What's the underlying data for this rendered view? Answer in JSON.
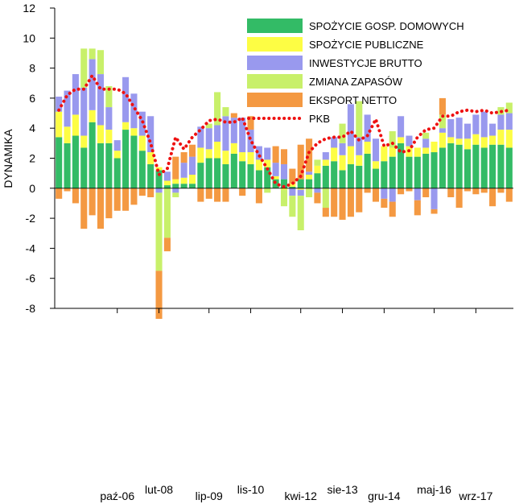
{
  "chart_data": {
    "type": "bar",
    "subtype": "stacked-bar-with-line",
    "title": "",
    "xlabel": "",
    "ylabel": "DYNAMIKA",
    "ylim": [
      -8,
      12
    ],
    "yticks": [
      -8,
      -6,
      -4,
      -2,
      0,
      2,
      4,
      6,
      8,
      10,
      12
    ],
    "grid": false,
    "legend_position": "top-right",
    "start_quarter": "2005Q1",
    "x_tick_labels": [
      {
        "label": "paź-06",
        "quarter": "2006Q4"
      },
      {
        "label": "lut-08",
        "quarter": "2008Q1"
      },
      {
        "label": "lip-09",
        "quarter": "2009Q3"
      },
      {
        "label": "lis-10",
        "quarter": "2010Q4"
      },
      {
        "label": "kwi-12",
        "quarter": "2012Q2"
      },
      {
        "label": "sie-13",
        "quarter": "2013Q3"
      },
      {
        "label": "gru-14",
        "quarter": "2014Q4"
      },
      {
        "label": "maj-16",
        "quarter": "2016Q2"
      },
      {
        "label": "wrz-17",
        "quarter": "2017Q3"
      }
    ],
    "series": [
      {
        "name": "SPOŻYCIE GOSP. DOMOWYCH",
        "color": "#33bb66",
        "values": [
          3.4,
          3.0,
          3.5,
          2.7,
          4.4,
          3.0,
          3.0,
          2.0,
          3.9,
          3.5,
          2.5,
          1.6,
          1.2,
          0.2,
          0.3,
          0.3,
          0.3,
          1.7,
          2.0,
          2.0,
          1.6,
          2.3,
          1.8,
          1.6,
          1.2,
          1.4,
          0.6,
          0.6,
          0.1,
          0.6,
          0.6,
          1.0,
          1.5,
          1.8,
          1.2,
          1.6,
          1.5,
          2.3,
          1.3,
          1.8,
          2.1,
          3.0,
          2.1,
          2.1,
          2.3,
          2.4,
          2.7,
          3.0,
          2.9,
          2.6,
          2.9,
          2.7,
          2.9,
          2.9,
          2.7
        ]
      },
      {
        "name": "SPOŻYCIE PUBLICZNE",
        "color": "#fdfd44",
        "values": [
          1.7,
          1.1,
          1.4,
          0.8,
          0.8,
          1.2,
          0.9,
          0.5,
          0.5,
          0.5,
          1.0,
          0.8,
          0.2,
          0.3,
          0.3,
          0.4,
          0.6,
          1.0,
          0.6,
          1.1,
          0.9,
          0.7,
          0.6,
          0.8,
          0.7,
          0.5,
          0.2,
          -0.1,
          0.2,
          -0.1,
          0.3,
          0.5,
          0.4,
          0.9,
          1.0,
          1.2,
          0.7,
          0.8,
          0.5,
          1.0,
          0.6,
          0.4,
          0.7,
          0.6,
          0.4,
          0.7,
          1.0,
          0.4,
          0.4,
          0.7,
          0.7,
          0.7,
          0.6,
          1.0,
          1.2
        ]
      },
      {
        "name": "INWESTYCJE BRUTTO",
        "color": "#9999ee",
        "values": [
          1.0,
          2.4,
          2.7,
          3.2,
          3.4,
          3.4,
          1.5,
          0.7,
          3.0,
          2.3,
          1.6,
          2.4,
          -0.3,
          0.6,
          -0.3,
          1.0,
          1.2,
          1.4,
          1.4,
          1.1,
          2.3,
          1.7,
          2.3,
          1.5,
          0.9,
          0.8,
          0.9,
          1.0,
          -0.5,
          -0.4,
          0.2,
          -0.3,
          0.5,
          0.7,
          0.8,
          2.8,
          1.2,
          1.8,
          1.5,
          -0.7,
          -0.9,
          1.4,
          0.7,
          -0.8,
          0.6,
          -1.4,
          0.3,
          1.2,
          1.4,
          1.0,
          1.3,
          1.7,
          0.8,
          1.0,
          1.1
        ]
      },
      {
        "name": "ZMIANA ZAPASÓW",
        "color": "#c8f06a",
        "values": [
          0.0,
          0.0,
          0.0,
          2.6,
          0.7,
          1.6,
          1.4,
          0.0,
          0.0,
          0.0,
          0.0,
          0.0,
          -5.2,
          -3.3,
          -0.3,
          0.0,
          0.0,
          0.0,
          0.3,
          2.2,
          0.6,
          0.0,
          0.0,
          0.0,
          0.0,
          -0.3,
          0.0,
          -1.1,
          -1.4,
          -2.3,
          -0.6,
          0.4,
          -1.3,
          0.0,
          1.3,
          0.0,
          2.4,
          0.0,
          0.0,
          0.0,
          1.1,
          0.0,
          0.0,
          0.0,
          0.4,
          0.0,
          0.9,
          0.0,
          0.0,
          0.0,
          0.0,
          0.0,
          0.0,
          0.5,
          0.7
        ]
      },
      {
        "name": "EKSPORT NETTO",
        "color": "#f49942",
        "values": [
          -0.7,
          -0.2,
          -1.0,
          -2.7,
          -1.8,
          -2.7,
          -2.0,
          -1.5,
          -1.5,
          -1.1,
          -0.5,
          -0.6,
          -3.2,
          -0.9,
          1.5,
          0.7,
          0.8,
          -0.9,
          -0.7,
          -0.9,
          -0.9,
          0.3,
          -0.5,
          0.9,
          -1.0,
          0.0,
          1.1,
          1.0,
          1.0,
          2.3,
          2.2,
          -0.7,
          -0.6,
          -1.9,
          -2.1,
          -1.9,
          -1.6,
          -0.3,
          -0.9,
          -0.6,
          -1.0,
          -0.4,
          -0.2,
          -1.0,
          -0.6,
          -0.3,
          1.1,
          -0.6,
          -1.3,
          -0.2,
          -0.4,
          -0.3,
          -1.2,
          -0.3,
          -0.9
        ]
      }
    ],
    "line_series": {
      "name": "PKB",
      "color": "#ee1111",
      "style": "dotted",
      "values": [
        5.2,
        6.2,
        6.6,
        6.6,
        7.5,
        6.6,
        6.6,
        6.6,
        6.3,
        5.4,
        4.5,
        3.0,
        0.9,
        1.3,
        3.4,
        2.6,
        3.4,
        3.9,
        4.5,
        4.6,
        4.4,
        4.4,
        4.7,
        3.2,
        2.2,
        1.3,
        0.3,
        0.1,
        0.3,
        0.8,
        2.4,
        3.0,
        3.3,
        3.4,
        3.4,
        3.8,
        3.2,
        3.5,
        4.6,
        2.8,
        3.0,
        2.4,
        2.5,
        3.4,
        3.9,
        4.0,
        4.8,
        4.8,
        5.1,
        5.2,
        5.1,
        5.2,
        5.0,
        5.1,
        5.2
      ]
    }
  }
}
